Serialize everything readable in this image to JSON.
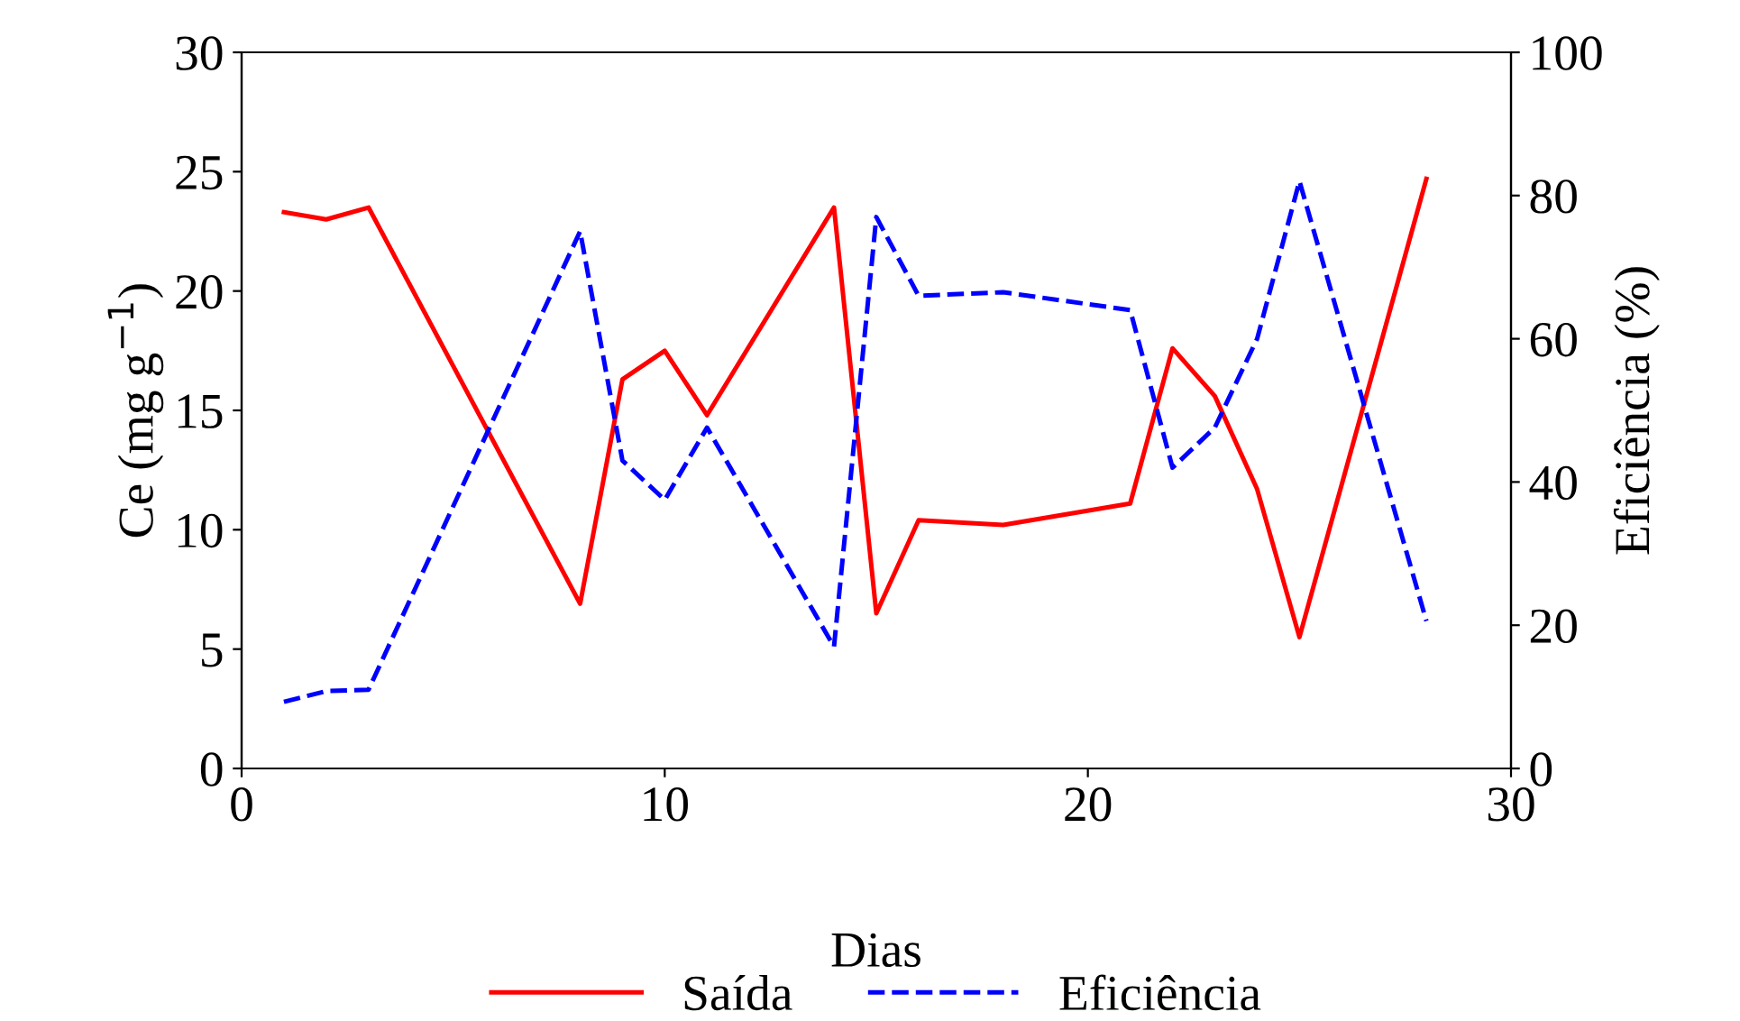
{
  "chart_data": {
    "type": "line",
    "xlabel": "Dias",
    "ylabel": "Ce (mg g$^{−1}$)",
    "y2label": "Eficiência (%)",
    "x": [
      1,
      2,
      3,
      8,
      9,
      10,
      11,
      14,
      15,
      16,
      18,
      21,
      22,
      23,
      24,
      25,
      28
    ],
    "series": [
      {
        "name": "Saída",
        "color": "#ff0000",
        "line_style": "solid",
        "values": [
          23.3,
          23.0,
          23.5,
          6.9,
          16.3,
          17.5,
          14.8,
          23.5,
          6.5,
          10.4,
          10.2,
          11.1,
          17.6,
          15.6,
          11.7,
          5.5,
          24.7
        ]
      },
      {
        "name": "Eficiência",
        "color": "#0000ff",
        "line_style": "dashed",
        "axis": "y2",
        "values": [
          9.3,
          10.8,
          11,
          75,
          43,
          37.5,
          47.6,
          17,
          77,
          66,
          66.5,
          64,
          42,
          47.6,
          60,
          82,
          20.6
        ]
      }
    ],
    "xlim": [
      0,
      30
    ],
    "xticks": [
      0,
      10,
      20,
      30
    ],
    "ylim": [
      0,
      30
    ],
    "yticks": [
      0,
      5,
      10,
      15,
      20,
      25,
      30
    ],
    "y2lim": [
      0,
      100
    ],
    "y2ticks": [
      0,
      20,
      40,
      60,
      80,
      100
    ],
    "grid": false,
    "legend": "bottom",
    "marker": "none"
  }
}
